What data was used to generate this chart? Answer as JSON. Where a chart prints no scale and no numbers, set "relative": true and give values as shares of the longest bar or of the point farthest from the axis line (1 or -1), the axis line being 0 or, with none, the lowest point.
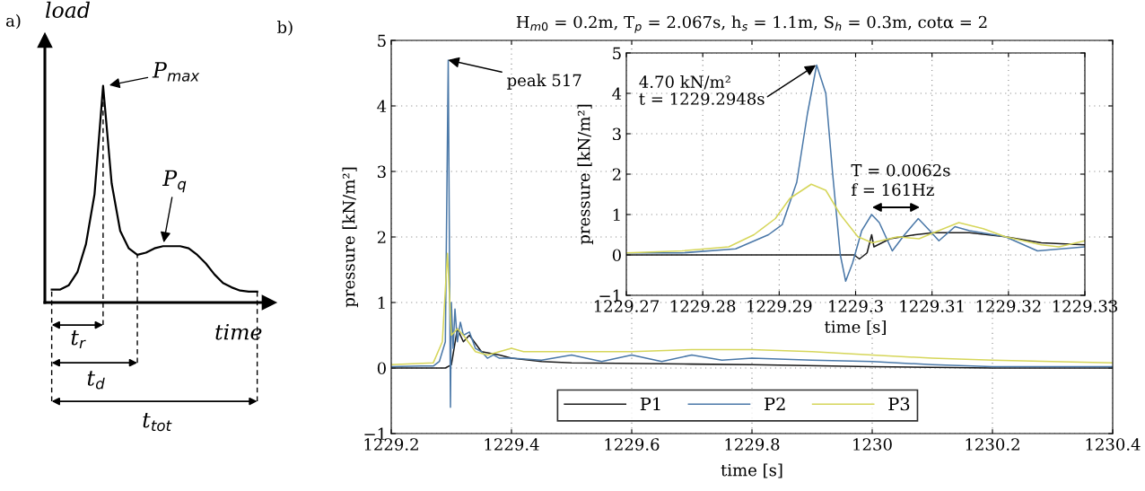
{
  "chart_data": [
    {
      "type": "line",
      "relative": true,
      "xlabel": "time",
      "ylabel": "load",
      "tick_labels": false,
      "categories": [
        null,
        null,
        null,
        null,
        null,
        null,
        null,
        null,
        null,
        null,
        null,
        null,
        null,
        null,
        null,
        null,
        null,
        null,
        null,
        null,
        null,
        null,
        null,
        null,
        null
      ],
      "series": [
        {
          "color": "#000000",
          "values": [
            0.06,
            0.06,
            0.08,
            0.14,
            0.27,
            0.5,
            1.0,
            0.55,
            0.33,
            0.25,
            0.22,
            0.23,
            0.25,
            0.26,
            0.26,
            0.26,
            0.25,
            0.22,
            0.18,
            0.13,
            0.09,
            0.07,
            0.055,
            0.05,
            0.05
          ]
        }
      ],
      "annotations": [
        "a)",
        "P$_{max}$",
        "P$_{q}$",
        "t$_{r}$",
        "t$_{d}$",
        "t$_{tot}$"
      ]
    },
    {
      "type": "line",
      "title": "H$_{m0}$ = 0.2m, T$_{p}$ = 2.067s, h$_{s}$ = 1.1m, S$_{h}$ = 0.3m, cotα = 2",
      "xlabel": "time [s]",
      "ylabel": "pressure [kN/m²]",
      "xlim": [
        1229.2,
        1230.4
      ],
      "xticks": [
        {
          "value": 1229.2,
          "label": "1229.2"
        },
        {
          "value": 1229.4,
          "label": "1229.4"
        },
        {
          "value": 1229.6,
          "label": "1229.6"
        },
        {
          "value": 1229.8,
          "label": "1229.8"
        },
        {
          "value": 1230,
          "label": "1230"
        },
        {
          "value": 1230.2,
          "label": "1230.2"
        },
        {
          "value": 1230.4,
          "label": "1230.4"
        }
      ],
      "ylim": [
        -1,
        5
      ],
      "yticks": [
        {
          "value": -1,
          "label": "−1"
        },
        0,
        1,
        2,
        3,
        4,
        5
      ],
      "grid": true,
      "legend": "bottom",
      "series": [
        {
          "name": "P1",
          "color": "#1a1a1a",
          "x": [
            1229.2,
            1229.29,
            1229.3,
            1229.31,
            1229.32,
            1229.33,
            1229.35,
            1229.38,
            1229.4,
            1229.45,
            1229.5,
            1229.7,
            1229.8,
            1230,
            1230.2,
            1230.4
          ],
          "values": [
            0,
            0,
            0.05,
            0.6,
            0.4,
            0.5,
            0.25,
            0.2,
            0.15,
            0.1,
            0.08,
            0.06,
            0.05,
            0.02,
            0,
            0
          ]
        },
        {
          "name": "P2",
          "color": "#4a78a8",
          "x": [
            1229.2,
            1229.25,
            1229.27,
            1229.28,
            1229.29,
            1229.2948,
            1229.2985,
            1229.3,
            1229.303,
            1229.306,
            1229.31,
            1229.315,
            1229.32,
            1229.33,
            1229.34,
            1229.35,
            1229.36,
            1229.37,
            1229.38,
            1229.4,
            1229.45,
            1229.5,
            1229.55,
            1229.6,
            1229.65,
            1229.7,
            1229.75,
            1229.8,
            1229.9,
            1230,
            1230.1,
            1230.2,
            1230.4
          ],
          "values": [
            0.02,
            0.03,
            0.03,
            0.1,
            0.4,
            4.7,
            -0.6,
            1.0,
            0.3,
            0.9,
            0.4,
            0.7,
            0.5,
            0.55,
            0.3,
            0.25,
            0.15,
            0.2,
            0.15,
            0.15,
            0.12,
            0.2,
            0.1,
            0.2,
            0.1,
            0.2,
            0.12,
            0.15,
            0.12,
            0.1,
            0.05,
            0.02,
            0.02
          ]
        },
        {
          "name": "P3",
          "color": "#d6d65a",
          "x": [
            1229.2,
            1229.27,
            1229.285,
            1229.2935,
            1229.3,
            1229.31,
            1229.32,
            1229.34,
            1229.36,
            1229.38,
            1229.4,
            1229.42,
            1229.5,
            1229.6,
            1229.7,
            1229.8,
            1229.9,
            1230,
            1230.1,
            1230.2,
            1230.3,
            1230.4
          ],
          "values": [
            0.05,
            0.08,
            0.4,
            1.75,
            0.5,
            0.6,
            0.5,
            0.25,
            0.2,
            0.25,
            0.3,
            0.25,
            0.25,
            0.25,
            0.28,
            0.28,
            0.25,
            0.2,
            0.15,
            0.12,
            0.1,
            0.08
          ]
        }
      ],
      "annotations": [
        "b)",
        {
          "text": "peak 517",
          "x": 1229.2948,
          "y": 4.7
        }
      ]
    },
    {
      "type": "line",
      "xlabel": "time [s]",
      "ylabel": "pressure [kN/m²]",
      "xlim": [
        1229.27,
        1229.33
      ],
      "xticks": [
        {
          "value": 1229.27,
          "label": "1229.27"
        },
        {
          "value": 1229.28,
          "label": "1229.28"
        },
        {
          "value": 1229.29,
          "label": "1229.29"
        },
        {
          "value": 1229.3,
          "label": "1229.3"
        },
        {
          "value": 1229.31,
          "label": "1229.31"
        },
        {
          "value": 1229.32,
          "label": "1229.32"
        },
        {
          "value": 1229.33,
          "label": "1229.33"
        }
      ],
      "ylim": [
        -1,
        5
      ],
      "yticks": [
        {
          "value": -1,
          "label": "−1"
        },
        0,
        1,
        2,
        3,
        4,
        5
      ],
      "grid": true,
      "series": [
        {
          "color": "#1a1a1a",
          "x": [
            1229.27,
            1229.2998,
            1229.3005,
            1229.3015,
            1229.3021,
            1229.3024,
            1229.3045,
            1229.3078,
            1229.3102,
            1229.3149,
            1229.3196,
            1229.3243,
            1229.33
          ],
          "values": [
            0,
            0,
            -0.1,
            0.05,
            0.5,
            0.2,
            0.4,
            0.5,
            0.55,
            0.55,
            0.45,
            0.3,
            0.25
          ]
        },
        {
          "color": "#4a78a8",
          "x": [
            1229.27,
            1229.2773,
            1229.2843,
            1229.2886,
            1229.2904,
            1229.2923,
            1229.2937,
            1229.2949,
            1229.2961,
            1229.297,
            1229.298,
            1229.2987,
            1229.2996,
            1229.3008,
            1229.3021,
            1229.3031,
            1229.3048,
            1229.3064,
            1229.3082,
            1229.3097,
            1229.3109,
            1229.313,
            1229.3149,
            1229.3196,
            1229.3238,
            1229.33
          ],
          "values": [
            0.05,
            0.05,
            0.15,
            0.5,
            0.75,
            1.8,
            3.5,
            4.7,
            4.0,
            2.0,
            0,
            -0.65,
            -0.2,
            0.6,
            1.0,
            0.8,
            0.1,
            0.5,
            0.9,
            0.6,
            0.35,
            0.7,
            0.6,
            0.45,
            0.1,
            0.2
          ]
        },
        {
          "color": "#d6d65a",
          "x": [
            1229.27,
            1229.2773,
            1229.2834,
            1229.2867,
            1229.2895,
            1229.2914,
            1229.2942,
            1229.2961,
            1229.298,
            1229.3003,
            1229.3022,
            1229.3055,
            1229.3083,
            1229.3102,
            1229.3135,
            1229.3167,
            1229.3196,
            1229.3243,
            1229.3266,
            1229.33
          ],
          "values": [
            0.05,
            0.1,
            0.2,
            0.5,
            0.9,
            1.4,
            1.75,
            1.6,
            1.0,
            0.45,
            0.3,
            0.45,
            0.4,
            0.55,
            0.8,
            0.65,
            0.45,
            0.25,
            0.2,
            0.35
          ]
        }
      ],
      "annotations": [
        {
          "text": "4.70 kN/m²\nt = 1229.2948s",
          "x": 1229.2948,
          "y": 4.7
        },
        "T = 0.0062s\nf = 161Hz"
      ]
    }
  ]
}
